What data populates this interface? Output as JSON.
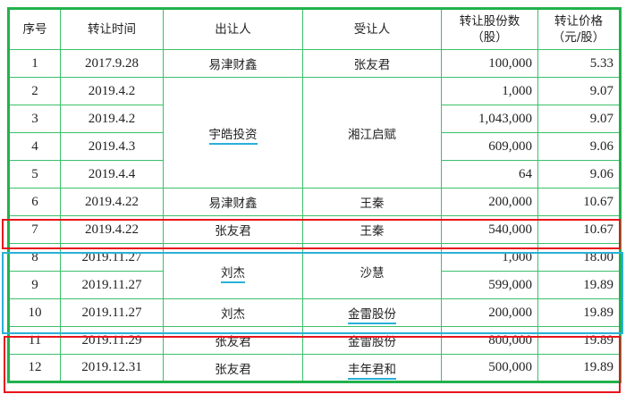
{
  "headers": [
    "序号",
    "转让时间",
    "出让人",
    "受让人",
    "转让股份数（股）",
    "转让价格（元/股）"
  ],
  "header_lines": {
    "shares": [
      "转让股份数",
      "（股）"
    ],
    "price": [
      "转让价格",
      "（元/股）"
    ]
  },
  "rows": [
    {
      "no": "1",
      "date": "2017.9.28",
      "from": "易津财鑫",
      "to": "张友君",
      "shares": "100,000",
      "price": "5.33"
    },
    {
      "no": "2",
      "date": "2019.4.2",
      "from": "宇皓投资",
      "to": "湘江启赋",
      "shares": "1,000",
      "price": "9.07"
    },
    {
      "no": "3",
      "date": "2019.4.2",
      "shares": "1,043,000",
      "price": "9.07"
    },
    {
      "no": "4",
      "date": "2019.4.3",
      "shares": "609,000",
      "price": "9.06"
    },
    {
      "no": "5",
      "date": "2019.4.4",
      "shares": "64",
      "price": "9.06"
    },
    {
      "no": "6",
      "date": "2019.4.22",
      "from": "易津财鑫",
      "to": "王秦",
      "shares": "200,000",
      "price": "10.67"
    },
    {
      "no": "7",
      "date": "2019.4.22",
      "from": "张友君",
      "to": "王秦",
      "shares": "540,000",
      "price": "10.67"
    },
    {
      "no": "8",
      "date": "2019.11.27",
      "from": "刘杰",
      "to": "沙慧",
      "shares": "1,000",
      "price": "18.00"
    },
    {
      "no": "9",
      "date": "2019.11.27",
      "shares": "599,000",
      "price": "19.89"
    },
    {
      "no": "10",
      "date": "2019.11.27",
      "from": "刘杰",
      "to": "金雷股份",
      "shares": "200,000",
      "price": "19.89"
    },
    {
      "no": "11",
      "date": "2019.11.29",
      "from": "张友君",
      "to": "金雷股份",
      "shares": "800,000",
      "price": "19.89"
    },
    {
      "no": "12",
      "date": "2019.12.31",
      "from": "张友君",
      "to": "丰年君和",
      "shares": "500,000",
      "price": "19.89"
    }
  ],
  "colors": {
    "table_border": "#22b14c",
    "highlight_red": "#e8141c",
    "highlight_cyan": "#2ab0d8",
    "underline": "#2ab0d8"
  }
}
